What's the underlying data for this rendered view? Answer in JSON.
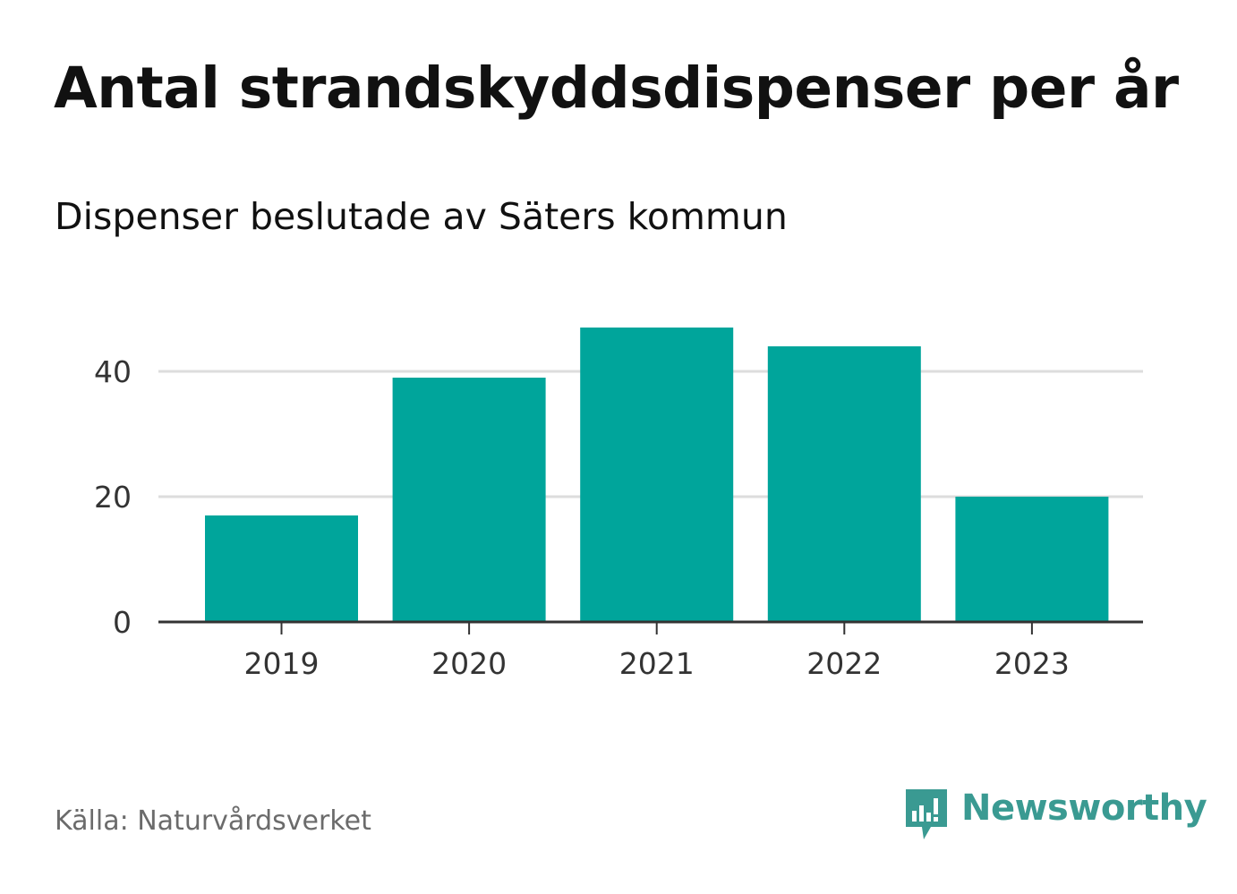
{
  "title": "Antal strandskyddsdispenser per år",
  "subtitle": "Dispenser beslutade av Säters kommun",
  "source": "Källa: Naturvårdsverket",
  "brand": {
    "name": "Newsworthy",
    "icon": "newsworthy-logo-icon",
    "color": "#3a9a92"
  },
  "colors": {
    "bar": "#00a59b",
    "grid": "#dddddd",
    "axis": "#333333"
  },
  "chart_data": {
    "type": "bar",
    "title": "Antal strandskyddsdispenser per år",
    "subtitle": "Dispenser beslutade av Säters kommun",
    "xlabel": "",
    "ylabel": "",
    "categories": [
      "2019",
      "2020",
      "2021",
      "2022",
      "2023"
    ],
    "values": [
      17,
      39,
      47,
      44,
      20
    ],
    "ylim": [
      0,
      50
    ],
    "yticks": [
      0,
      20,
      40
    ],
    "grid": true,
    "legend": "none"
  }
}
